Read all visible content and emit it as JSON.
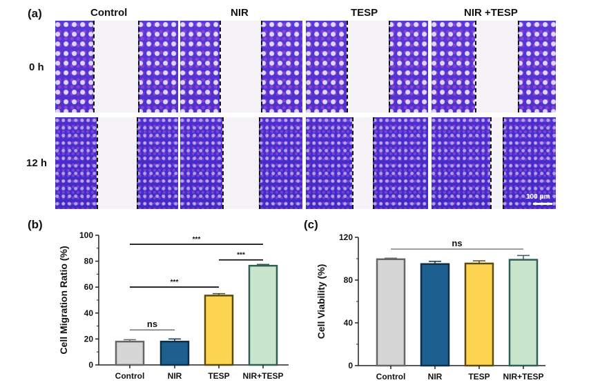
{
  "panel_a": {
    "label": "(a)",
    "columns": [
      "Control",
      "NIR",
      "TESP",
      "NIR +TESP"
    ],
    "rows": [
      "0 h",
      "12 h"
    ],
    "scale_bar": "100 μm"
  },
  "chart_data": [
    {
      "panel_label": "(b)",
      "type": "bar",
      "categories": [
        "Control",
        "NIR",
        "TESP",
        "NIR+TESP"
      ],
      "values": [
        18,
        18,
        53.5,
        76.5
      ],
      "errors": [
        1.5,
        2,
        1.5,
        1
      ],
      "ylabel": "Cell Migration Ratio (%)",
      "xlabel": "",
      "ylim": [
        0,
        100
      ],
      "yticks": [
        0,
        20,
        40,
        60,
        80,
        100
      ],
      "colors": [
        "#d6d6d6",
        "#1d5f8f",
        "#fdd451",
        "#c9e6cc"
      ],
      "edge_colors": [
        "#666666",
        "#0d2f4a",
        "#5a4a10",
        "#2f5f55"
      ],
      "significance": [
        {
          "from": 0,
          "to": 1,
          "label": "ns",
          "y": 27
        },
        {
          "from": 0,
          "to": 2,
          "label": "***",
          "y": 60
        },
        {
          "from": 2,
          "to": 3,
          "label": "***",
          "y": 81
        },
        {
          "from": 0,
          "to": 3,
          "label": "***",
          "y": 93
        }
      ],
      "grid": false
    },
    {
      "panel_label": "(c)",
      "type": "bar",
      "categories": [
        "Control",
        "NIR",
        "TESP",
        "NIR+TESP"
      ],
      "values": [
        99.5,
        95,
        95.5,
        99
      ],
      "errors": [
        1,
        2.5,
        2.5,
        4
      ],
      "ylabel": "Cell Viability (%)",
      "xlabel": "",
      "ylim": [
        0,
        120
      ],
      "yticks": [
        0,
        40,
        80,
        120
      ],
      "colors": [
        "#d6d6d6",
        "#1d5f8f",
        "#fdd451",
        "#c9e6cc"
      ],
      "edge_colors": [
        "#666666",
        "#0d2f4a",
        "#5a4a10",
        "#2f5f55"
      ],
      "significance": [
        {
          "from": 0,
          "to": 3,
          "label": "ns",
          "y": 109
        }
      ],
      "grid": false
    }
  ]
}
